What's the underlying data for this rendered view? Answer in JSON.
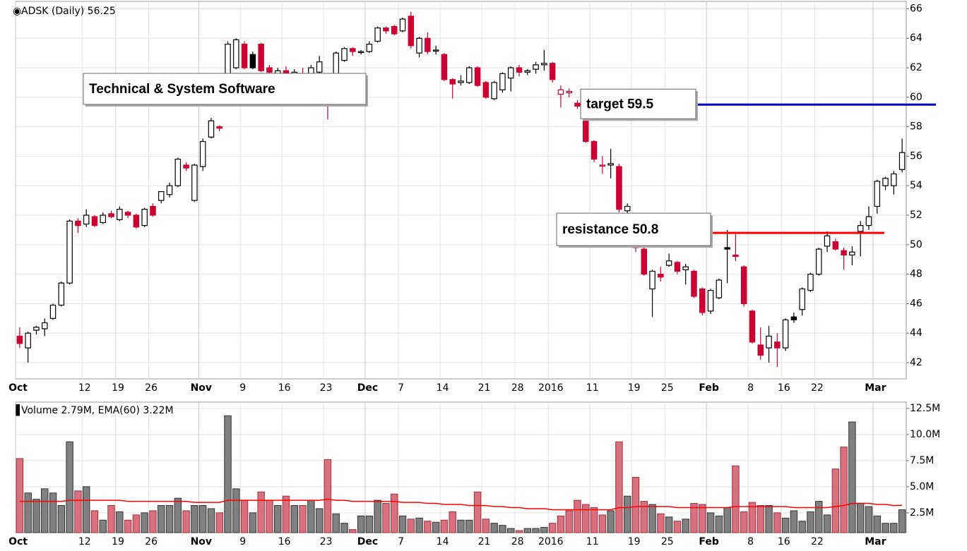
{
  "chart_data": [
    {
      "type": "candlestick",
      "title": "ADSK (Daily) 56.25",
      "ohlc": [
        [
          43.8,
          44.4,
          43.0,
          43.3
        ],
        [
          43.0,
          44.1,
          42.0,
          44.0
        ],
        [
          44.2,
          44.5,
          43.9,
          44.4
        ],
        [
          44.3,
          45.0,
          43.8,
          44.7
        ],
        [
          45.0,
          46.0,
          44.9,
          45.9
        ],
        [
          45.9,
          47.5,
          45.8,
          47.4
        ],
        [
          47.4,
          51.7,
          47.3,
          51.6
        ],
        [
          51.6,
          51.8,
          50.8,
          51.3
        ],
        [
          51.4,
          52.4,
          51.2,
          52.0
        ],
        [
          51.9,
          52.0,
          51.2,
          51.3
        ],
        [
          51.5,
          52.2,
          51.4,
          52.0
        ],
        [
          52.1,
          52.3,
          51.8,
          51.9
        ],
        [
          51.7,
          52.6,
          51.6,
          52.4
        ],
        [
          52.2,
          52.3,
          51.8,
          52.0
        ],
        [
          52.0,
          52.1,
          51.1,
          51.2
        ],
        [
          51.3,
          52.5,
          51.2,
          52.4
        ],
        [
          52.6,
          52.8,
          51.9,
          52.0
        ],
        [
          53.0,
          53.6,
          52.8,
          53.6
        ],
        [
          53.4,
          54.2,
          53.2,
          54.0
        ],
        [
          54.0,
          55.9,
          53.9,
          55.8
        ],
        [
          55.4,
          55.6,
          55.0,
          55.2
        ],
        [
          53.0,
          55.5,
          52.9,
          55.4
        ],
        [
          55.3,
          57.2,
          55.0,
          57.0
        ],
        [
          57.3,
          58.6,
          57.2,
          58.4
        ],
        [
          58.0,
          58.1,
          57.7,
          57.9
        ],
        [
          61.0,
          63.8,
          60.8,
          63.6
        ],
        [
          62.0,
          64.0,
          61.9,
          63.9
        ],
        [
          63.6,
          63.8,
          61.9,
          62.0
        ],
        [
          62.9,
          63.1,
          61.9,
          62.0
        ],
        [
          63.6,
          63.7,
          61.7,
          61.8
        ],
        [
          62.0,
          62.2,
          61.6,
          61.7
        ],
        [
          61.6,
          62.0,
          61.2,
          61.8
        ],
        [
          61.8,
          62.1,
          61.0,
          61.4
        ],
        [
          61.4,
          61.9,
          61.1,
          61.7
        ],
        [
          61.6,
          62.0,
          61.2,
          61.5
        ],
        [
          61.5,
          62.2,
          61.3,
          62.0
        ],
        [
          61.7,
          62.8,
          61.5,
          62.4
        ],
        [
          60.8,
          61.2,
          58.5,
          60.2
        ],
        [
          61.5,
          63.1,
          61.3,
          63.0
        ],
        [
          62.5,
          63.4,
          62.4,
          63.3
        ],
        [
          63.3,
          63.4,
          62.8,
          63.1
        ],
        [
          63.1,
          63.2,
          62.9,
          63.1
        ],
        [
          63.1,
          63.8,
          63.0,
          63.6
        ],
        [
          63.8,
          64.8,
          63.7,
          64.7
        ],
        [
          64.7,
          64.8,
          64.3,
          64.5
        ],
        [
          64.8,
          64.9,
          64.2,
          64.3
        ],
        [
          64.5,
          65.4,
          64.4,
          65.3
        ],
        [
          65.5,
          65.8,
          63.3,
          63.5
        ],
        [
          63.0,
          64.1,
          62.7,
          64.0
        ],
        [
          64.0,
          64.4,
          62.9,
          63.1
        ],
        [
          63.2,
          63.5,
          62.9,
          63.2
        ],
        [
          62.9,
          63.0,
          61.1,
          61.2
        ],
        [
          61.2,
          61.3,
          59.9,
          60.9
        ],
        [
          61.0,
          61.5,
          60.8,
          61.1
        ],
        [
          61.0,
          62.1,
          60.9,
          62.0
        ],
        [
          62.0,
          62.1,
          60.7,
          60.8
        ],
        [
          61.0,
          61.1,
          59.9,
          60.0
        ],
        [
          59.9,
          61.1,
          59.8,
          61.0
        ],
        [
          60.5,
          61.7,
          60.3,
          61.6
        ],
        [
          61.3,
          62.1,
          60.4,
          62.0
        ],
        [
          62.0,
          62.2,
          61.4,
          61.7
        ],
        [
          61.7,
          61.9,
          61.5,
          61.8
        ],
        [
          61.9,
          62.4,
          61.6,
          62.2
        ],
        [
          62.2,
          63.2,
          61.8,
          62.3
        ],
        [
          62.3,
          62.4,
          61.0,
          61.2
        ],
        [
          60.2,
          60.8,
          59.3,
          60.5
        ],
        [
          60.3,
          60.6,
          60.0,
          60.4
        ],
        [
          59.6,
          59.8,
          59.2,
          59.4
        ],
        [
          58.6,
          58.7,
          56.9,
          57.0
        ],
        [
          57.0,
          57.1,
          55.6,
          55.8
        ],
        [
          55.4,
          56.0,
          54.8,
          55.4
        ],
        [
          55.4,
          56.5,
          54.5,
          55.5
        ],
        [
          55.3,
          55.5,
          52.2,
          52.4
        ],
        [
          52.3,
          52.8,
          51.6,
          52.6
        ],
        [
          51.0,
          51.5,
          49.5,
          49.8
        ],
        [
          49.7,
          49.9,
          47.9,
          48.0
        ],
        [
          47.0,
          48.3,
          45.1,
          48.2
        ],
        [
          48.0,
          48.5,
          47.5,
          47.8
        ],
        [
          48.6,
          49.4,
          48.5,
          48.9
        ],
        [
          48.8,
          48.9,
          48.0,
          48.2
        ],
        [
          48.3,
          48.7,
          47.3,
          48.5
        ],
        [
          48.2,
          48.3,
          46.4,
          46.5
        ],
        [
          47.0,
          47.1,
          45.2,
          45.4
        ],
        [
          45.5,
          47.0,
          45.3,
          46.9
        ],
        [
          46.4,
          47.7,
          46.3,
          47.6
        ],
        [
          49.8,
          51.0,
          47.4,
          49.7
        ],
        [
          49.3,
          50.7,
          48.9,
          49.2
        ],
        [
          48.5,
          48.6,
          45.8,
          46.0
        ],
        [
          45.5,
          45.6,
          43.3,
          43.4
        ],
        [
          43.2,
          44.4,
          42.2,
          42.5
        ],
        [
          43.0,
          44.5,
          42.0,
          43.8
        ],
        [
          43.4,
          44.0,
          41.7,
          43.0
        ],
        [
          43.0,
          45.0,
          42.8,
          44.9
        ],
        [
          45.1,
          45.4,
          44.7,
          44.9
        ],
        [
          45.6,
          47.1,
          45.2,
          47.0
        ],
        [
          46.9,
          48.1,
          46.8,
          48.0
        ],
        [
          48.0,
          49.8,
          47.9,
          49.7
        ],
        [
          49.9,
          50.9,
          49.5,
          50.6
        ],
        [
          50.2,
          50.4,
          49.6,
          49.7
        ],
        [
          49.6,
          49.8,
          48.3,
          49.3
        ],
        [
          49.3,
          49.9,
          48.6,
          49.5
        ],
        [
          50.9,
          51.6,
          49.2,
          51.3
        ],
        [
          51.3,
          52.6,
          51.0,
          51.9
        ],
        [
          52.6,
          54.4,
          52.1,
          54.3
        ],
        [
          54.0,
          54.6,
          53.7,
          54.5
        ],
        [
          54.0,
          55.0,
          53.4,
          54.8
        ],
        [
          55.1,
          57.2,
          54.9,
          56.25
        ]
      ],
      "up_color": "#000000",
      "down_color": "#cc0033",
      "xlim": [
        -0.5,
        106.5
      ],
      "ylim": [
        40.9,
        66.5
      ],
      "yticks": [
        42,
        44,
        46,
        48,
        50,
        52,
        54,
        56,
        58,
        60,
        62,
        64,
        66
      ],
      "xticks": [
        {
          "value": 0,
          "label": "Oct"
        },
        {
          "value": 8,
          "label": "12"
        },
        {
          "value": 12,
          "label": "19"
        },
        {
          "value": 16,
          "label": "26"
        },
        {
          "value": 22,
          "label": "Nov"
        },
        {
          "value": 27,
          "label": "9"
        },
        {
          "value": 32,
          "label": "16"
        },
        {
          "value": 37,
          "label": "23"
        },
        {
          "value": 42,
          "label": "Dec"
        },
        {
          "value": 46,
          "label": "7"
        },
        {
          "value": 51,
          "label": "14"
        },
        {
          "value": 56,
          "label": "21"
        },
        {
          "value": 60,
          "label": "28"
        },
        {
          "value": 64,
          "label": "2016"
        },
        {
          "value": 69,
          "label": "11"
        },
        {
          "value": 74,
          "label": "19"
        },
        {
          "value": 78,
          "label": "25"
        },
        {
          "value": 83,
          "label": "Feb"
        },
        {
          "value": 88,
          "label": "8"
        },
        {
          "value": 92,
          "label": "16"
        },
        {
          "value": 96,
          "label": "22"
        },
        {
          "value": 103,
          "label": "Mar"
        }
      ],
      "grid": true,
      "annotations": [
        {
          "text": "Technical & System Software"
        },
        {
          "text": "target 59.5",
          "value": 59.5,
          "color": "#0000cc"
        },
        {
          "text": "resistance 50.8",
          "value": 50.8,
          "color": "#ff0000"
        }
      ]
    },
    {
      "type": "bar",
      "title": "Volume 2.79M, EMA(60) 3.22M",
      "values": [
        7.7,
        4.4,
        3.8,
        4.8,
        4.4,
        3.2,
        9.3,
        4.6,
        5.0,
        2.7,
        1.8,
        3.2,
        2.6,
        1.8,
        2.3,
        2.5,
        2.7,
        3.2,
        3.2,
        3.9,
        2.7,
        3.2,
        3.2,
        2.9,
        2.5,
        11.8,
        4.8,
        3.7,
        2.5,
        4.5,
        3.7,
        3.2,
        4.1,
        3.2,
        3.2,
        3.7,
        2.9,
        7.6,
        2.4,
        1.5,
        0.9,
        2.2,
        2.2,
        3.7,
        3.4,
        4.3,
        2.2,
        1.9,
        2.0,
        1.7,
        1.6,
        1.8,
        2.6,
        1.8,
        1.8,
        4.5,
        1.9,
        1.5,
        1.3,
        1.0,
        0.8,
        1.0,
        1.0,
        1.1,
        1.5,
        2.2,
        2.7,
        3.7,
        3.3,
        3.0,
        2.3,
        2.7,
        9.3,
        4.1,
        5.9,
        3.6,
        3.3,
        2.4,
        2.1,
        1.7,
        1.9,
        3.4,
        3.3,
        2.5,
        2.2,
        3.0,
        7.0,
        2.6,
        3.5,
        3.2,
        3.2,
        2.5,
        2.0,
        2.7,
        1.7,
        2.6,
        3.6,
        2.3,
        6.7,
        8.8,
        11.2,
        3.4,
        3.1,
        2.2,
        1.5,
        1.5,
        2.79
      ],
      "ema": {
        "color": "#ff0000",
        "values": [
          3.6,
          3.6,
          3.6,
          3.6,
          3.6,
          3.6,
          3.7,
          3.7,
          3.7,
          3.7,
          3.7,
          3.7,
          3.7,
          3.6,
          3.6,
          3.6,
          3.6,
          3.6,
          3.6,
          3.6,
          3.6,
          3.5,
          3.5,
          3.5,
          3.5,
          3.7,
          3.7,
          3.7,
          3.7,
          3.7,
          3.7,
          3.7,
          3.7,
          3.7,
          3.7,
          3.7,
          3.7,
          3.8,
          3.7,
          3.7,
          3.6,
          3.6,
          3.6,
          3.6,
          3.6,
          3.6,
          3.5,
          3.5,
          3.5,
          3.4,
          3.4,
          3.3,
          3.3,
          3.3,
          3.2,
          3.2,
          3.2,
          3.1,
          3.1,
          3.0,
          3.0,
          2.9,
          2.9,
          2.9,
          2.8,
          2.8,
          2.8,
          2.8,
          2.8,
          2.8,
          2.8,
          2.8,
          3.0,
          3.0,
          3.1,
          3.1,
          3.1,
          3.1,
          3.1,
          3.0,
          3.0,
          3.0,
          3.0,
          3.0,
          3.0,
          3.0,
          3.1,
          3.1,
          3.1,
          3.1,
          3.1,
          3.1,
          3.1,
          3.0,
          3.0,
          3.0,
          3.0,
          3.0,
          3.1,
          3.2,
          3.4,
          3.4,
          3.4,
          3.3,
          3.3,
          3.2,
          3.22
        ]
      },
      "up_color": "#808080",
      "down_color": "#d9707e",
      "xlim": [
        -0.5,
        106.5
      ],
      "ylim": [
        0.6,
        13.1
      ],
      "yticks": [
        {
          "value": 2.5,
          "label": "2.5M"
        },
        {
          "value": 5,
          "label": "5.0M"
        },
        {
          "value": 7.5,
          "label": "7.5M"
        },
        {
          "value": 10,
          "label": "10.0M"
        },
        {
          "value": 12.5,
          "label": "12.5M"
        }
      ],
      "xticks": [
        {
          "value": 0,
          "label": "Oct"
        },
        {
          "value": 8,
          "label": "12"
        },
        {
          "value": 12,
          "label": "19"
        },
        {
          "value": 16,
          "label": "26"
        },
        {
          "value": 22,
          "label": "Nov"
        },
        {
          "value": 27,
          "label": "9"
        },
        {
          "value": 32,
          "label": "16"
        },
        {
          "value": 37,
          "label": "23"
        },
        {
          "value": 42,
          "label": "Dec"
        },
        {
          "value": 46,
          "label": "7"
        },
        {
          "value": 51,
          "label": "14"
        },
        {
          "value": 56,
          "label": "21"
        },
        {
          "value": 60,
          "label": "28"
        },
        {
          "value": 64,
          "label": "2016"
        },
        {
          "value": 69,
          "label": "11"
        },
        {
          "value": 74,
          "label": "19"
        },
        {
          "value": 78,
          "label": "25"
        },
        {
          "value": 83,
          "label": "Feb"
        },
        {
          "value": 88,
          "label": "8"
        },
        {
          "value": 92,
          "label": "16"
        },
        {
          "value": 96,
          "label": "22"
        },
        {
          "value": 103,
          "label": "Mar"
        }
      ],
      "grid": true
    }
  ]
}
